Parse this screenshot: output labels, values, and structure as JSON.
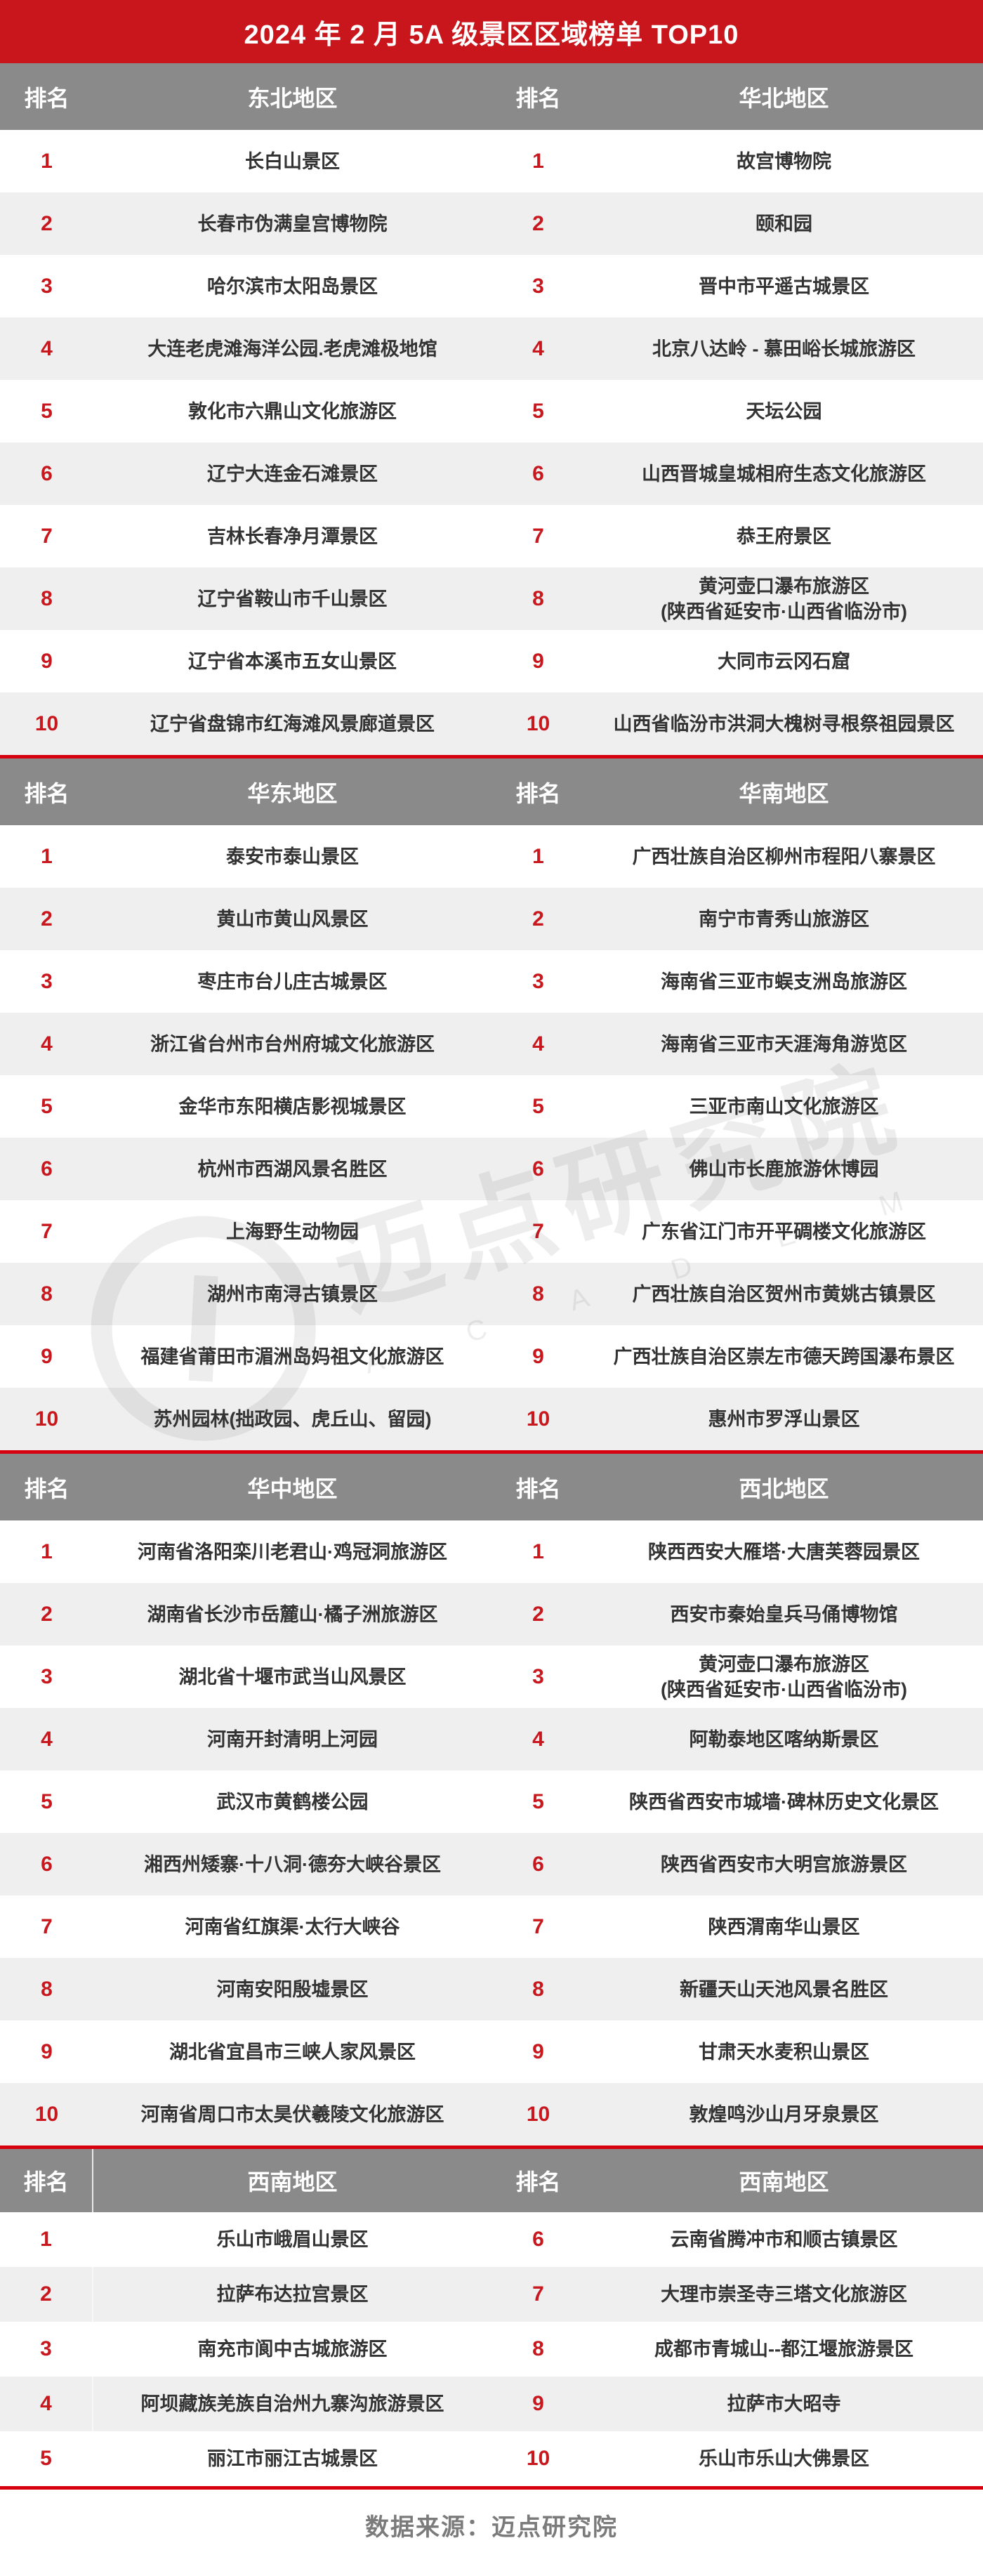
{
  "title": "2024 年 2 月 5A 级景区区域榜单 TOP10",
  "columns": {
    "rank_label": "排名"
  },
  "colors": {
    "accent_red": "#c9161c",
    "line_red": "#d7000f",
    "header_gray": "#8a8a8a",
    "row_alt_gray": "#efefef",
    "rank_red": "#c8171d"
  },
  "watermark": {
    "text": "迈点研究院",
    "subtext": "A C A D E M Y"
  },
  "footer": {
    "source_label": "数据来源：迈点研究院"
  },
  "sections": [
    {
      "left": {
        "region": "东北地区",
        "rows": [
          {
            "rank": "1",
            "name": "长白山景区"
          },
          {
            "rank": "2",
            "name": "长春市伪满皇宫博物院"
          },
          {
            "rank": "3",
            "name": "哈尔滨市太阳岛景区"
          },
          {
            "rank": "4",
            "name": "大连老虎滩海洋公园.老虎滩极地馆"
          },
          {
            "rank": "5",
            "name": "敦化市六鼎山文化旅游区"
          },
          {
            "rank": "6",
            "name": "辽宁大连金石滩景区"
          },
          {
            "rank": "7",
            "name": "吉林长春净月潭景区"
          },
          {
            "rank": "8",
            "name": "辽宁省鞍山市千山景区"
          },
          {
            "rank": "9",
            "name": "辽宁省本溪市五女山景区"
          },
          {
            "rank": "10",
            "name": "辽宁省盘锦市红海滩风景廊道景区"
          }
        ]
      },
      "right": {
        "region": "华北地区",
        "rows": [
          {
            "rank": "1",
            "name": "故宫博物院"
          },
          {
            "rank": "2",
            "name": "颐和园"
          },
          {
            "rank": "3",
            "name": "晋中市平遥古城景区"
          },
          {
            "rank": "4",
            "name": "北京八达岭 - 慕田峪长城旅游区"
          },
          {
            "rank": "5",
            "name": "天坛公园"
          },
          {
            "rank": "6",
            "name": "山西晋城皇城相府生态文化旅游区"
          },
          {
            "rank": "7",
            "name": "恭王府景区"
          },
          {
            "rank": "8",
            "name": "黄河壶口瀑布旅游区",
            "name2": "(陕西省延安市·山西省临汾市)"
          },
          {
            "rank": "9",
            "name": "大同市云冈石窟"
          },
          {
            "rank": "10",
            "name": "山西省临汾市洪洞大槐树寻根祭祖园景区"
          }
        ]
      }
    },
    {
      "left": {
        "region": "华东地区",
        "rows": [
          {
            "rank": "1",
            "name": "泰安市泰山景区"
          },
          {
            "rank": "2",
            "name": "黄山市黄山风景区"
          },
          {
            "rank": "3",
            "name": "枣庄市台儿庄古城景区"
          },
          {
            "rank": "4",
            "name": "浙江省台州市台州府城文化旅游区"
          },
          {
            "rank": "5",
            "name": "金华市东阳横店影视城景区"
          },
          {
            "rank": "6",
            "name": "杭州市西湖风景名胜区"
          },
          {
            "rank": "7",
            "name": "上海野生动物园"
          },
          {
            "rank": "8",
            "name": "湖州市南浔古镇景区"
          },
          {
            "rank": "9",
            "name": "福建省莆田市湄洲岛妈祖文化旅游区"
          },
          {
            "rank": "10",
            "name": "苏州园林(拙政园、虎丘山、留园)"
          }
        ]
      },
      "right": {
        "region": "华南地区",
        "rows": [
          {
            "rank": "1",
            "name": "广西壮族自治区柳州市程阳八寨景区"
          },
          {
            "rank": "2",
            "name": "南宁市青秀山旅游区"
          },
          {
            "rank": "3",
            "name": "海南省三亚市蜈支洲岛旅游区"
          },
          {
            "rank": "4",
            "name": "海南省三亚市天涯海角游览区"
          },
          {
            "rank": "5",
            "name": "三亚市南山文化旅游区"
          },
          {
            "rank": "6",
            "name": "佛山市长鹿旅游休博园"
          },
          {
            "rank": "7",
            "name": "广东省江门市开平碉楼文化旅游区"
          },
          {
            "rank": "8",
            "name": "广西壮族自治区贺州市黄姚古镇景区"
          },
          {
            "rank": "9",
            "name": "广西壮族自治区崇左市德天跨国瀑布景区"
          },
          {
            "rank": "10",
            "name": "惠州市罗浮山景区"
          }
        ]
      }
    },
    {
      "left": {
        "region": "华中地区",
        "rows": [
          {
            "rank": "1",
            "name": "河南省洛阳栾川老君山·鸡冠洞旅游区"
          },
          {
            "rank": "2",
            "name": "湖南省长沙市岳麓山·橘子洲旅游区"
          },
          {
            "rank": "3",
            "name": "湖北省十堰市武当山风景区"
          },
          {
            "rank": "4",
            "name": "河南开封清明上河园"
          },
          {
            "rank": "5",
            "name": "武汉市黄鹤楼公园"
          },
          {
            "rank": "6",
            "name": "湘西州矮寨·十八洞·德夯大峡谷景区"
          },
          {
            "rank": "7",
            "name": "河南省红旗渠·太行大峡谷"
          },
          {
            "rank": "8",
            "name": "河南安阳殷墟景区"
          },
          {
            "rank": "9",
            "name": "湖北省宜昌市三峡人家风景区"
          },
          {
            "rank": "10",
            "name": "河南省周口市太昊伏羲陵文化旅游区"
          }
        ]
      },
      "right": {
        "region": "西北地区",
        "rows": [
          {
            "rank": "1",
            "name": "陕西西安大雁塔·大唐芙蓉园景区"
          },
          {
            "rank": "2",
            "name": "西安市秦始皇兵马俑博物馆"
          },
          {
            "rank": "3",
            "name": "黄河壶口瀑布旅游区",
            "name2": "(陕西省延安市·山西省临汾市)"
          },
          {
            "rank": "4",
            "name": "阿勒泰地区喀纳斯景区"
          },
          {
            "rank": "5",
            "name": "陕西省西安市城墙·碑林历史文化景区"
          },
          {
            "rank": "6",
            "name": "陕西省西安市大明宫旅游景区"
          },
          {
            "rank": "7",
            "name": "陕西渭南华山景区"
          },
          {
            "rank": "8",
            "name": "新疆天山天池风景名胜区"
          },
          {
            "rank": "9",
            "name": "甘肃天水麦积山景区"
          },
          {
            "rank": "10",
            "name": "敦煌鸣沙山月牙泉景区"
          }
        ]
      }
    },
    {
      "left": {
        "region": "西南地区",
        "rows": [
          {
            "rank": "1",
            "name": "乐山市峨眉山景区"
          },
          {
            "rank": "2",
            "name": "拉萨布达拉宫景区"
          },
          {
            "rank": "3",
            "name": "南充市阆中古城旅游区"
          },
          {
            "rank": "4",
            "name": "阿坝藏族羌族自治州九寨沟旅游景区"
          },
          {
            "rank": "5",
            "name": "丽江市丽江古城景区"
          }
        ]
      },
      "right": {
        "region": "西南地区",
        "rows": [
          {
            "rank": "6",
            "name": "云南省腾冲市和顺古镇景区"
          },
          {
            "rank": "7",
            "name": "大理市崇圣寺三塔文化旅游区"
          },
          {
            "rank": "8",
            "name": "成都市青城山--都江堰旅游景区"
          },
          {
            "rank": "9",
            "name": "拉萨市大昭寺"
          },
          {
            "rank": "10",
            "name": "乐山市乐山大佛景区"
          }
        ]
      }
    }
  ]
}
